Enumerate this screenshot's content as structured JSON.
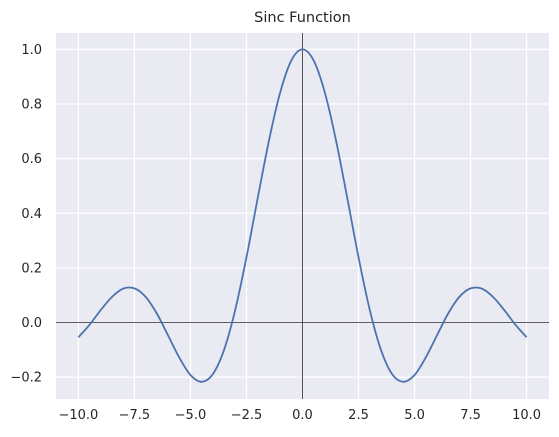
{
  "chart_data": {
    "type": "line",
    "title": "Sinc Function",
    "xlabel": "",
    "ylabel": "",
    "xlim": [
      -11.0,
      11.0
    ],
    "ylim": [
      -0.28,
      1.06
    ],
    "x_ticks": [
      -10.0,
      -7.5,
      -5.0,
      -2.5,
      0.0,
      2.5,
      5.0,
      7.5,
      10.0
    ],
    "x_tick_labels": [
      "−10.0",
      "−7.5",
      "−5.0",
      "−2.5",
      "0.0",
      "2.5",
      "5.0",
      "7.5",
      "10.0"
    ],
    "y_ticks": [
      -0.2,
      0.0,
      0.2,
      0.4,
      0.6,
      0.8,
      1.0
    ],
    "y_tick_labels": [
      "−0.2",
      "0.0",
      "0.2",
      "0.4",
      "0.6",
      "0.8",
      "1.0"
    ],
    "grid": true,
    "reference_lines": {
      "horizontal_at_y": 0,
      "vertical_at_x": 0
    },
    "series": [
      {
        "color": "#4c72b0",
        "x": [
          -10.0,
          -9.5,
          -9.0,
          -8.5,
          -8.0,
          -7.5,
          -7.0,
          -6.5,
          -6.0,
          -5.5,
          -5.0,
          -4.5,
          -4.0,
          -3.5,
          -3.0,
          -2.5,
          -2.0,
          -1.5,
          -1.0,
          -0.5,
          0.0,
          0.5,
          1.0,
          1.5,
          2.0,
          2.5,
          3.0,
          3.5,
          4.0,
          4.5,
          5.0,
          5.5,
          6.0,
          6.5,
          7.0,
          7.5,
          8.0,
          8.5,
          9.0,
          9.5,
          10.0
        ],
        "y": [
          -0.054,
          -0.008,
          0.046,
          0.094,
          0.124,
          0.125,
          0.094,
          0.033,
          -0.047,
          -0.128,
          -0.192,
          -0.217,
          -0.189,
          -0.1,
          0.047,
          0.239,
          0.455,
          0.665,
          0.841,
          0.959,
          1.0,
          0.959,
          0.841,
          0.665,
          0.455,
          0.239,
          0.047,
          -0.1,
          -0.189,
          -0.217,
          -0.192,
          -0.128,
          -0.047,
          0.033,
          0.094,
          0.125,
          0.124,
          0.094,
          0.046,
          -0.008,
          -0.054
        ]
      }
    ]
  },
  "colors": {
    "plot_background": "#eaeaf2",
    "grid": "#ffffff",
    "line": "#4c72b0",
    "reference_line": "#262626",
    "text": "#262626"
  }
}
